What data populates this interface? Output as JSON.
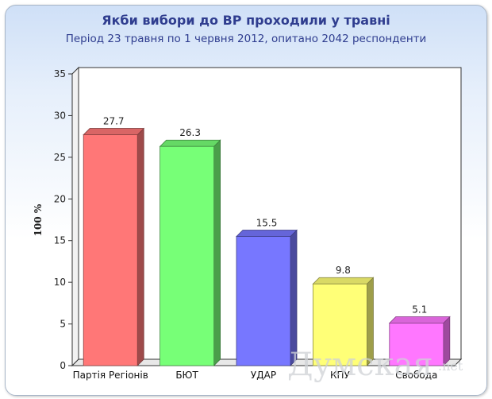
{
  "chart_data": {
    "type": "bar",
    "title": "Якби вибори до ВР проходили у травні",
    "subtitle": "Період 23 травня по 1 червня 2012, опитано 2042 респонденти",
    "ylabel": "100 %",
    "xlabel": "",
    "ylim": [
      0,
      35
    ],
    "yticks": [
      0,
      5,
      10,
      15,
      20,
      25,
      30,
      35
    ],
    "categories": [
      "Партія Регіонів",
      "БЮТ",
      "УДАР",
      "КПУ",
      "Свобода"
    ],
    "values": [
      27.7,
      26.3,
      15.5,
      9.8,
      5.1
    ],
    "value_labels": [
      "27.7",
      "26.3",
      "15.5",
      "9.8",
      "5.1"
    ],
    "colors": [
      "#ff7777",
      "#77ff77",
      "#7777ff",
      "#ffff77",
      "#ff77ff"
    ],
    "grid": false,
    "style": "3d-bars"
  },
  "watermark": {
    "text": "Думская",
    "suffix": ".net"
  }
}
